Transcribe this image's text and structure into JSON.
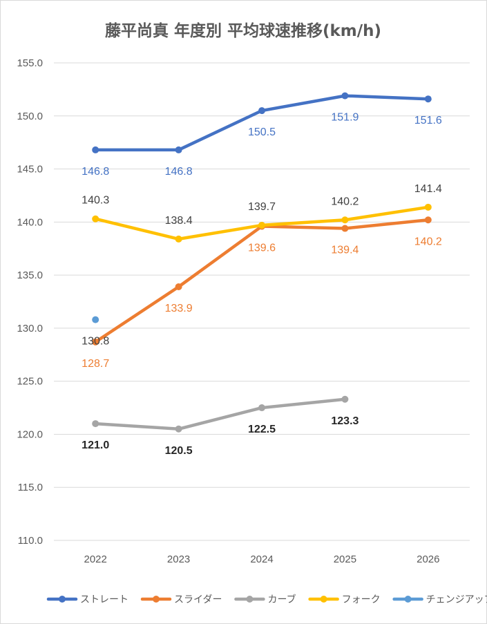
{
  "chart_data": {
    "type": "line",
    "title": "藤平尚真 年度別 平均球速推移(km/h)",
    "categories": [
      "2022",
      "2023",
      "2024",
      "2025",
      "2026"
    ],
    "ylim": [
      110,
      155
    ],
    "ytick_step": 5,
    "ytick_labels": [
      "110.0",
      "115.0",
      "120.0",
      "125.0",
      "130.0",
      "135.0",
      "140.0",
      "145.0",
      "150.0",
      "155.0"
    ],
    "grid": true,
    "legend_position": "bottom",
    "series": [
      {
        "name": "ストレート",
        "color": "#4472C4",
        "label_color": "#4472C4",
        "label_bold": false,
        "label_pos": "below",
        "values": [
          146.8,
          146.8,
          150.5,
          151.9,
          151.6
        ],
        "labels": [
          "146.8",
          "146.8",
          "150.5",
          "151.9",
          "151.6"
        ]
      },
      {
        "name": "スライダー",
        "color": "#ED7D31",
        "label_color": "#ED7D31",
        "label_bold": false,
        "label_pos": "below",
        "values": [
          128.7,
          133.9,
          139.6,
          139.4,
          140.2
        ],
        "labels": [
          "128.7",
          "133.9",
          "139.6",
          "139.4",
          "140.2"
        ]
      },
      {
        "name": "カーブ",
        "color": "#A5A5A5",
        "label_color": "#262626",
        "label_bold": true,
        "label_pos": "below",
        "values": [
          121.0,
          120.5,
          122.5,
          123.3,
          null
        ],
        "labels": [
          "121.0",
          "120.5",
          "122.5",
          "123.3",
          null
        ]
      },
      {
        "name": "フォーク",
        "color": "#FFC000",
        "label_color": "#404040",
        "label_bold": false,
        "label_pos": "above",
        "values": [
          140.3,
          138.4,
          139.7,
          140.2,
          141.4
        ],
        "labels": [
          "140.3",
          "138.4",
          "139.7",
          "140.2",
          "141.4"
        ]
      },
      {
        "name": "チェンジアップ",
        "color": "#5B9BD5",
        "label_color": "#404040",
        "label_bold": false,
        "label_pos": "below",
        "values": [
          130.8,
          null,
          null,
          null,
          null
        ],
        "labels": [
          "130.8",
          null,
          null,
          null,
          null
        ]
      }
    ]
  }
}
